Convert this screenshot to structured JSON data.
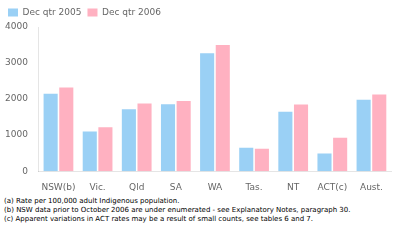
{
  "chart_data": {
    "type": "bar",
    "categories": [
      "NSW(b)",
      "Vic.",
      "Qld",
      "SA",
      "WA",
      "Tas.",
      "NT",
      "ACT(c)",
      "Aust."
    ],
    "series": [
      {
        "name": "Dec qtr 2005",
        "values": [
          2150,
          1100,
          1720,
          1860,
          3270,
          650,
          1650,
          490,
          1980
        ]
      },
      {
        "name": "Dec qtr 2006",
        "values": [
          2320,
          1220,
          1880,
          1950,
          3500,
          620,
          1850,
          930,
          2130
        ]
      }
    ],
    "ylim": [
      0,
      4000
    ],
    "yticks": [
      0,
      1000,
      2000,
      3000,
      4000
    ],
    "grid": false,
    "legend": "upper left",
    "annotations": [
      "(a) Rate per 100,000 adult Indigenous population.",
      "(b) NSW data prior to October 2006 are under enumerated - see Explanatory Notes, paragraph 30.",
      "(c) Apparent variations in ACT rates may be a result of small counts, see tables 6 and 7."
    ]
  }
}
